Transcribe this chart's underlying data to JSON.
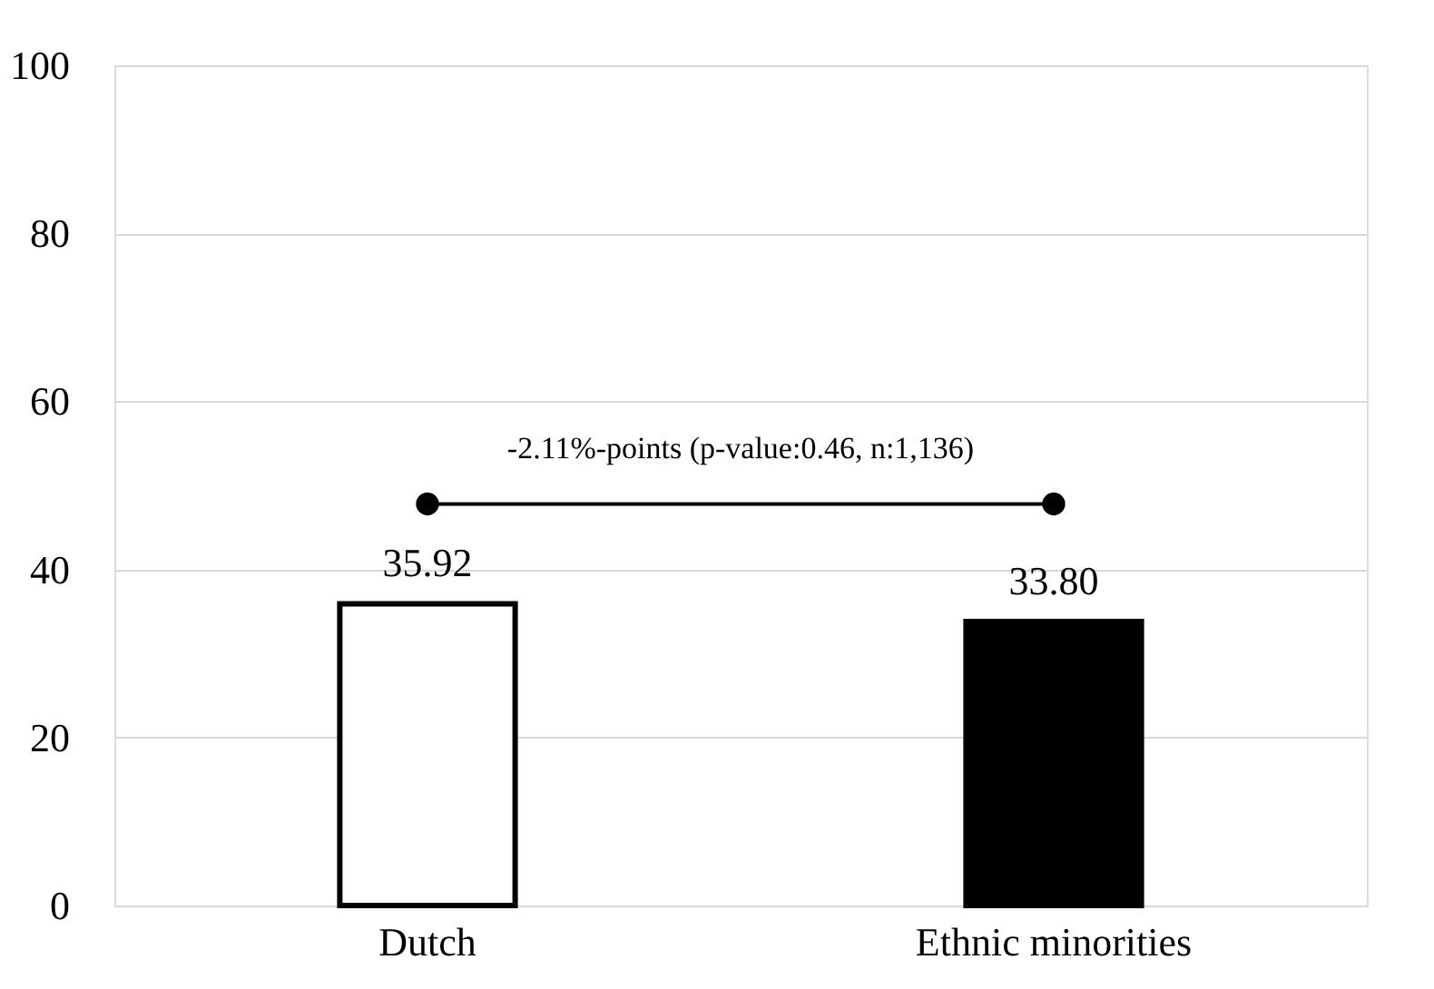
{
  "chart_data": {
    "type": "bar",
    "categories": [
      "Dutch",
      "Ethnic minorities"
    ],
    "values": [
      35.92,
      33.8
    ],
    "colors": [
      "#ffffff",
      "#000000"
    ],
    "ylim": [
      0,
      100
    ],
    "yticks": [
      0,
      20,
      40,
      60,
      80,
      100
    ],
    "grid": "y",
    "value_labels": [
      "35.92",
      "33.80"
    ],
    "annotations": [
      "-2.11%-points (p-value:0.46, n:1,136)"
    ]
  }
}
